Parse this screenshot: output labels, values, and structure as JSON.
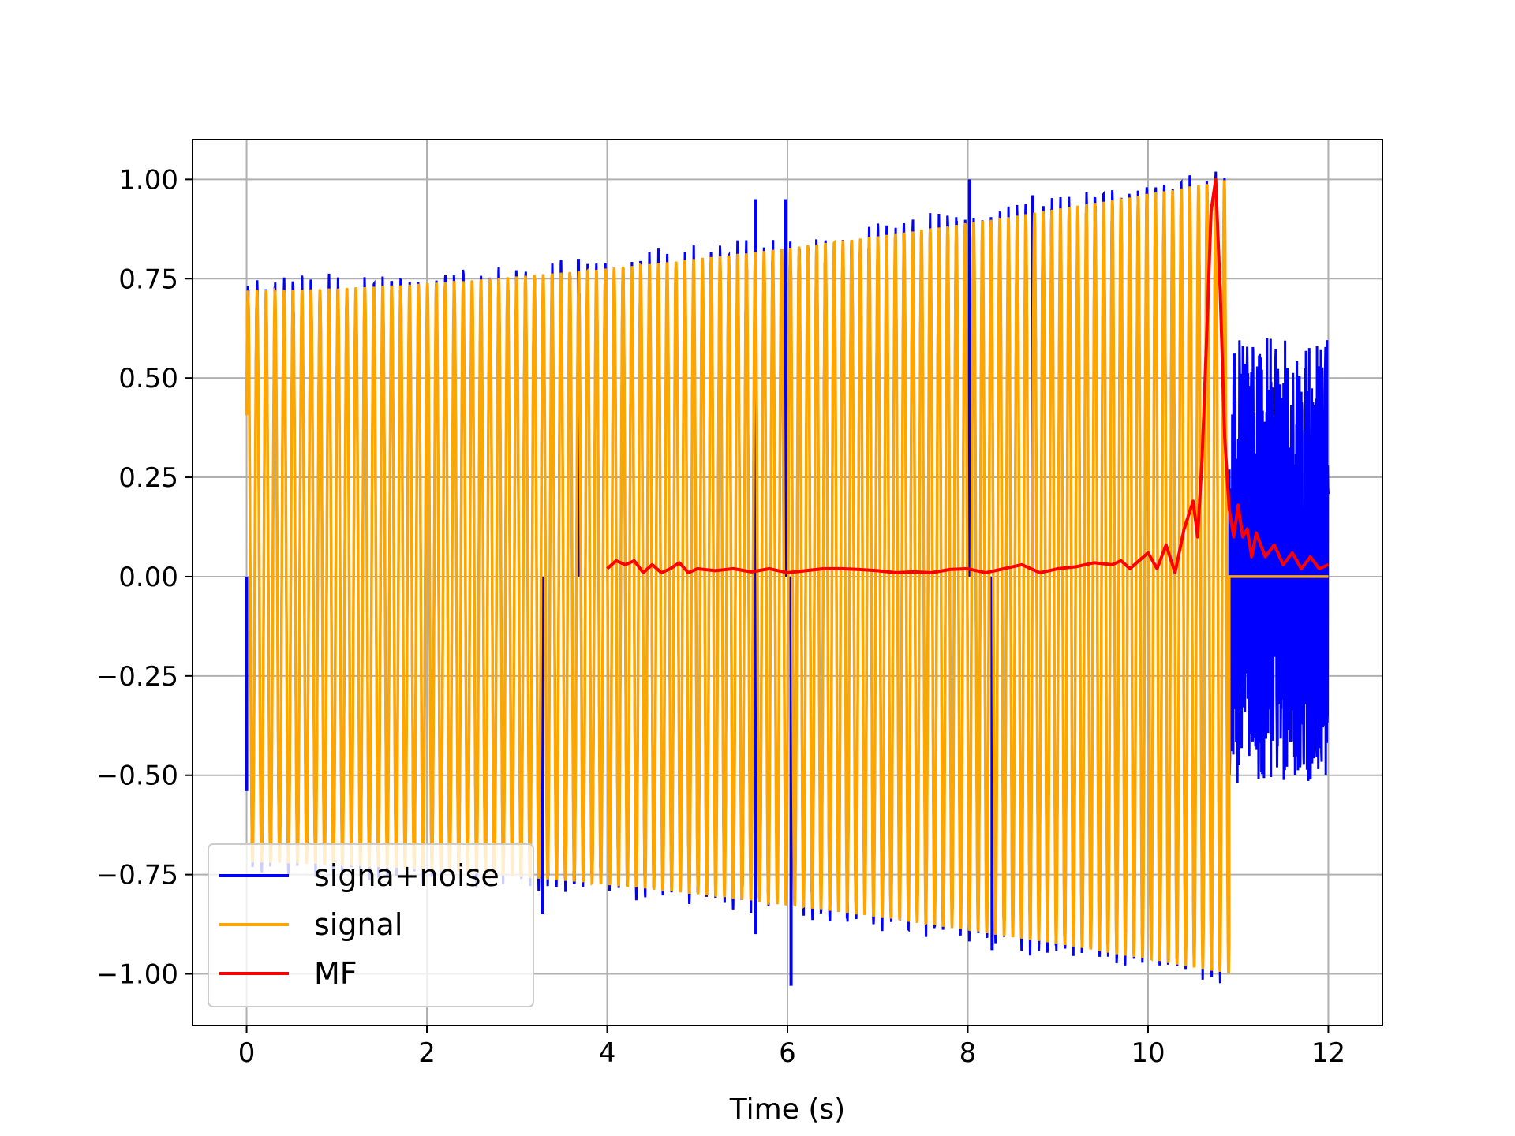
{
  "chart_data": {
    "type": "line",
    "title": "",
    "xlabel": "Time (s)",
    "ylabel": "",
    "xlim": [
      -0.6,
      12.6
    ],
    "ylim": [
      -1.13,
      1.1
    ],
    "xticks": [
      0,
      2,
      4,
      6,
      8,
      10,
      12
    ],
    "xtick_labels": [
      "0",
      "2",
      "4",
      "6",
      "8",
      "10",
      "12"
    ],
    "yticks": [
      1.0,
      0.75,
      0.5,
      0.25,
      0.0,
      -0.25,
      -0.5,
      -0.75,
      -1.0
    ],
    "ytick_labels": [
      "1.00",
      "0.75",
      "0.50",
      "0.25",
      "0.00",
      "−0.25",
      "−0.50",
      "−0.75",
      "−1.00"
    ],
    "grid": true,
    "legend_position": "lower-left",
    "series": [
      {
        "name": "signa+noise",
        "color": "#0000ff",
        "description": "chirp signal plus noise, 0 to 12 s",
        "start": 0.0,
        "end": 12.0,
        "noise_only_after": 10.9,
        "noise_amplitude_range": [
          -0.52,
          0.6
        ],
        "spikes": [
          {
            "x": 3.68,
            "y": 0.8
          },
          {
            "x": 5.65,
            "y": 0.95
          },
          {
            "x": 5.98,
            "y": 0.95
          },
          {
            "x": 8.02,
            "y": 1.0
          },
          {
            "x": 8.72,
            "y": 0.96
          },
          {
            "x": 3.28,
            "y": -0.85
          },
          {
            "x": 5.65,
            "y": -0.9
          },
          {
            "x": 6.04,
            "y": -1.03
          },
          {
            "x": 8.27,
            "y": -0.94
          },
          {
            "x": 0.0,
            "y": -0.54
          }
        ]
      },
      {
        "name": "signal",
        "color": "#ffa500",
        "description": "chirp with growing envelope, zero after 10.9 s",
        "start": 0.0,
        "end": 10.9,
        "envelope_start": 0.72,
        "envelope_end": 1.0,
        "after_end_value": 0.0
      },
      {
        "name": "MF",
        "color": "#ff0000",
        "description": "matched filter output",
        "x": [
          4.0,
          4.1,
          4.2,
          4.3,
          4.4,
          4.5,
          4.6,
          4.7,
          4.8,
          4.9,
          5.0,
          5.2,
          5.4,
          5.6,
          5.8,
          6.0,
          6.2,
          6.4,
          6.6,
          6.8,
          7.0,
          7.2,
          7.4,
          7.6,
          7.8,
          8.0,
          8.2,
          8.4,
          8.6,
          8.8,
          9.0,
          9.2,
          9.4,
          9.6,
          9.7,
          9.8,
          9.9,
          10.0,
          10.1,
          10.2,
          10.3,
          10.4,
          10.5,
          10.55,
          10.6,
          10.65,
          10.7,
          10.75,
          10.8,
          10.85,
          10.9,
          10.95,
          11.0,
          11.05,
          11.1,
          11.15,
          11.2,
          11.3,
          11.4,
          11.5,
          11.6,
          11.7,
          11.8,
          11.9,
          12.0
        ],
        "y": [
          0.02,
          0.04,
          0.03,
          0.04,
          0.01,
          0.03,
          0.01,
          0.02,
          0.035,
          0.01,
          0.02,
          0.015,
          0.02,
          0.012,
          0.02,
          0.01,
          0.015,
          0.02,
          0.02,
          0.018,
          0.015,
          0.01,
          0.012,
          0.01,
          0.018,
          0.02,
          0.01,
          0.02,
          0.03,
          0.01,
          0.02,
          0.025,
          0.035,
          0.03,
          0.04,
          0.02,
          0.04,
          0.06,
          0.02,
          0.08,
          0.01,
          0.12,
          0.19,
          0.1,
          0.3,
          0.6,
          0.92,
          1.0,
          0.72,
          0.35,
          0.17,
          0.1,
          0.18,
          0.1,
          0.12,
          0.05,
          0.11,
          0.05,
          0.08,
          0.03,
          0.06,
          0.02,
          0.05,
          0.02,
          0.03
        ]
      }
    ]
  }
}
